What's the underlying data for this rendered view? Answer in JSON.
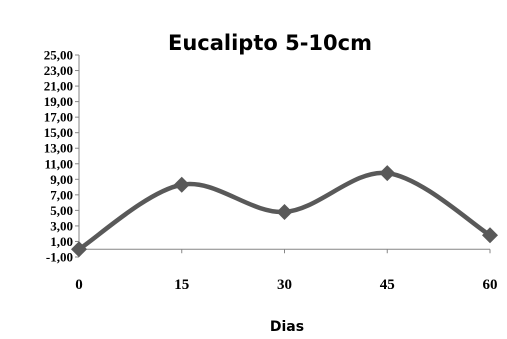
{
  "chart_data": {
    "type": "line",
    "title": "Eucalipto 5-10cm",
    "xlabel": "Dias",
    "ylabel": "",
    "x": [
      0,
      15,
      30,
      45,
      60
    ],
    "x_tick_labels": [
      "0",
      "15",
      "30",
      "45",
      "60"
    ],
    "ylim": [
      -1,
      25
    ],
    "y_tick_labels": [
      "25,00",
      "23,00",
      "21,00",
      "19,00",
      "17,00",
      "15,00",
      "13,00",
      "11,00",
      "9,00",
      "7,00",
      "5,00",
      "3,00",
      "1,00",
      "-1,00"
    ],
    "series": [
      {
        "values": [
          0.0,
          8.3,
          4.8,
          9.8,
          1.8
        ]
      }
    ],
    "grid": false,
    "line_smoothed": true,
    "marker": "diamond",
    "colors": {
      "line": "#595959",
      "marker": "#595959",
      "axis": "#868686"
    }
  }
}
